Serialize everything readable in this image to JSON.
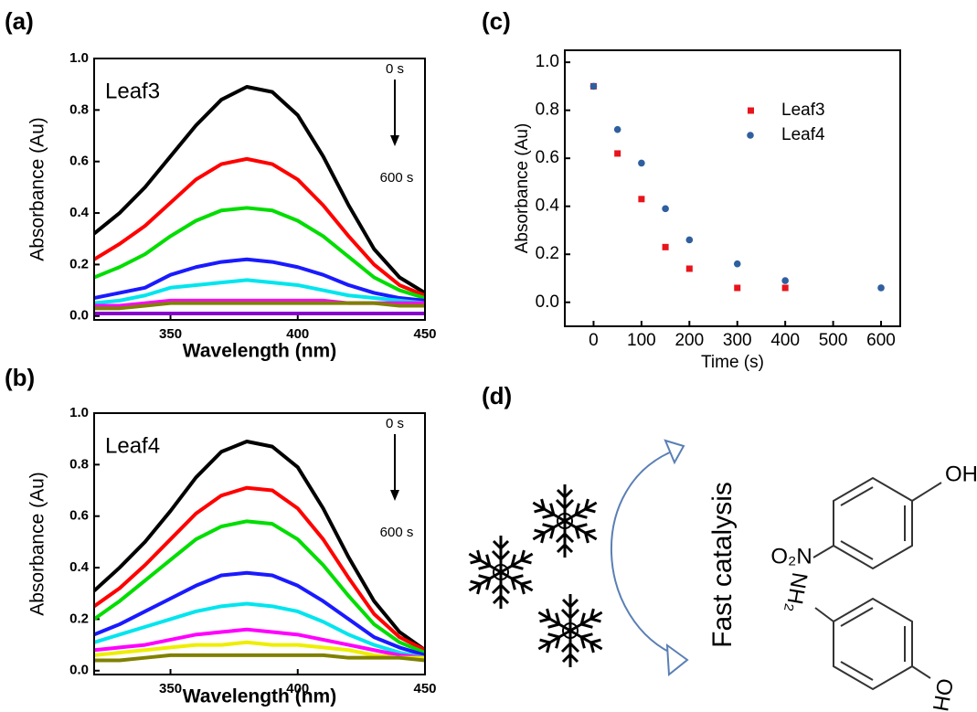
{
  "chart_data": [
    {
      "type": "line",
      "panel_label": "(a)",
      "inset_label": "Leaf3",
      "arrow_start": "0 s",
      "arrow_end": "600 s",
      "xlabel": "Wavelength (nm)",
      "ylabel": "Absorbance (Au)",
      "x": [
        320,
        330,
        340,
        350,
        360,
        370,
        380,
        390,
        400,
        410,
        420,
        430,
        440,
        450
      ],
      "series": [
        {
          "color": "#000000",
          "values": [
            0.32,
            0.4,
            0.5,
            0.62,
            0.74,
            0.84,
            0.89,
            0.87,
            0.78,
            0.62,
            0.43,
            0.26,
            0.15,
            0.09
          ]
        },
        {
          "color": "#ff0000",
          "values": [
            0.22,
            0.28,
            0.35,
            0.44,
            0.53,
            0.59,
            0.61,
            0.59,
            0.53,
            0.43,
            0.31,
            0.2,
            0.12,
            0.08
          ]
        },
        {
          "color": "#00dd00",
          "values": [
            0.15,
            0.19,
            0.24,
            0.31,
            0.37,
            0.41,
            0.42,
            0.41,
            0.37,
            0.31,
            0.23,
            0.15,
            0.1,
            0.07
          ]
        },
        {
          "color": "#1a1aff",
          "values": [
            0.07,
            0.09,
            0.11,
            0.16,
            0.19,
            0.21,
            0.22,
            0.21,
            0.19,
            0.16,
            0.12,
            0.09,
            0.07,
            0.06
          ]
        },
        {
          "color": "#00e5ee",
          "values": [
            0.05,
            0.06,
            0.08,
            0.11,
            0.12,
            0.13,
            0.14,
            0.13,
            0.12,
            0.1,
            0.08,
            0.07,
            0.06,
            0.05
          ]
        },
        {
          "color": "#ff00ff",
          "values": [
            0.04,
            0.04,
            0.05,
            0.06,
            0.06,
            0.06,
            0.06,
            0.06,
            0.06,
            0.06,
            0.05,
            0.05,
            0.05,
            0.05
          ]
        },
        {
          "color": "#808000",
          "values": [
            0.03,
            0.03,
            0.04,
            0.05,
            0.05,
            0.05,
            0.05,
            0.05,
            0.05,
            0.05,
            0.05,
            0.05,
            0.04,
            0.04
          ]
        },
        {
          "color": "#8800cc",
          "values": [
            0.01,
            0.01,
            0.01,
            0.01,
            0.01,
            0.01,
            0.01,
            0.01,
            0.01,
            0.01,
            0.01,
            0.01,
            0.01,
            0.01
          ]
        }
      ],
      "xlim": [
        320,
        450
      ],
      "xticks": [
        350,
        400,
        450
      ],
      "ylim": [
        -0.015,
        1.0
      ],
      "yticks": [
        {
          "value": 0,
          "label": "0.0"
        },
        0.2,
        0.4,
        0.6,
        0.8,
        {
          "value": 1,
          "label": "1.0"
        }
      ]
    },
    {
      "type": "line",
      "panel_label": "(b)",
      "inset_label": "Leaf4",
      "arrow_start": "0 s",
      "arrow_end": "600 s",
      "xlabel": "Wavelength (nm)",
      "ylabel": "Absorbance (Au)",
      "x": [
        320,
        330,
        340,
        350,
        360,
        370,
        380,
        390,
        400,
        410,
        420,
        430,
        440,
        450
      ],
      "series": [
        {
          "color": "#000000",
          "values": [
            0.31,
            0.4,
            0.5,
            0.62,
            0.75,
            0.85,
            0.89,
            0.87,
            0.79,
            0.63,
            0.44,
            0.27,
            0.15,
            0.08
          ]
        },
        {
          "color": "#ff0000",
          "values": [
            0.25,
            0.32,
            0.41,
            0.51,
            0.61,
            0.68,
            0.71,
            0.7,
            0.63,
            0.51,
            0.36,
            0.22,
            0.13,
            0.08
          ]
        },
        {
          "color": "#00dd00",
          "values": [
            0.2,
            0.27,
            0.35,
            0.43,
            0.51,
            0.56,
            0.58,
            0.57,
            0.51,
            0.41,
            0.29,
            0.18,
            0.11,
            0.07
          ]
        },
        {
          "color": "#1a1aff",
          "values": [
            0.14,
            0.18,
            0.23,
            0.28,
            0.33,
            0.37,
            0.38,
            0.37,
            0.33,
            0.27,
            0.2,
            0.13,
            0.09,
            0.06
          ]
        },
        {
          "color": "#00e5ee",
          "values": [
            0.11,
            0.14,
            0.17,
            0.2,
            0.23,
            0.25,
            0.26,
            0.25,
            0.23,
            0.19,
            0.14,
            0.1,
            0.07,
            0.05
          ]
        },
        {
          "color": "#ff00ff",
          "values": [
            0.08,
            0.09,
            0.1,
            0.12,
            0.14,
            0.15,
            0.16,
            0.15,
            0.14,
            0.12,
            0.1,
            0.08,
            0.06,
            0.05
          ]
        },
        {
          "color": "#eeee00",
          "values": [
            0.06,
            0.07,
            0.08,
            0.09,
            0.1,
            0.1,
            0.11,
            0.1,
            0.1,
            0.09,
            0.08,
            0.06,
            0.05,
            0.05
          ]
        },
        {
          "color": "#808000",
          "values": [
            0.04,
            0.04,
            0.05,
            0.06,
            0.06,
            0.06,
            0.06,
            0.06,
            0.06,
            0.06,
            0.05,
            0.05,
            0.05,
            0.04
          ]
        }
      ],
      "xlim": [
        320,
        450
      ],
      "xticks": [
        350,
        400,
        450
      ],
      "ylim": [
        -0.015,
        1.0
      ],
      "yticks": [
        {
          "value": 0,
          "label": "0.0"
        },
        0.2,
        0.4,
        0.6,
        0.8,
        {
          "value": 1,
          "label": "1.0"
        }
      ]
    },
    {
      "type": "scatter",
      "panel_label": "(c)",
      "xlabel": "Time (s)",
      "ylabel": "Absorbance (Au)",
      "series": [
        {
          "name": "Leaf3",
          "color": "#e8141c",
          "marker": "square",
          "x": [
            0,
            50,
            100,
            150,
            200,
            300,
            400
          ],
          "values": [
            0.9,
            0.62,
            0.43,
            0.23,
            0.14,
            0.06,
            0.06
          ]
        },
        {
          "name": "Leaf4",
          "color": "#2f5f9e",
          "marker": "circle",
          "x": [
            0,
            50,
            100,
            150,
            200,
            300,
            400,
            600
          ],
          "values": [
            0.9,
            0.72,
            0.58,
            0.39,
            0.26,
            0.16,
            0.09,
            0.06
          ]
        }
      ],
      "xlim": [
        -60,
        640
      ],
      "xticks": [
        0,
        100,
        200,
        300,
        400,
        500,
        600
      ],
      "ylim": [
        -0.1,
        1.05
      ],
      "yticks": [
        {
          "value": 0,
          "label": "0.0"
        },
        0.2,
        0.4,
        0.6,
        0.8,
        {
          "value": 1,
          "label": "1.0"
        }
      ]
    }
  ],
  "diagram": {
    "panel_label": "(d)",
    "arrow_label": "Fast catalysis",
    "reactant_oh": "OH",
    "reactant_no2": "O₂N",
    "product_nh2": "NH₂",
    "product_oh": "OH"
  }
}
